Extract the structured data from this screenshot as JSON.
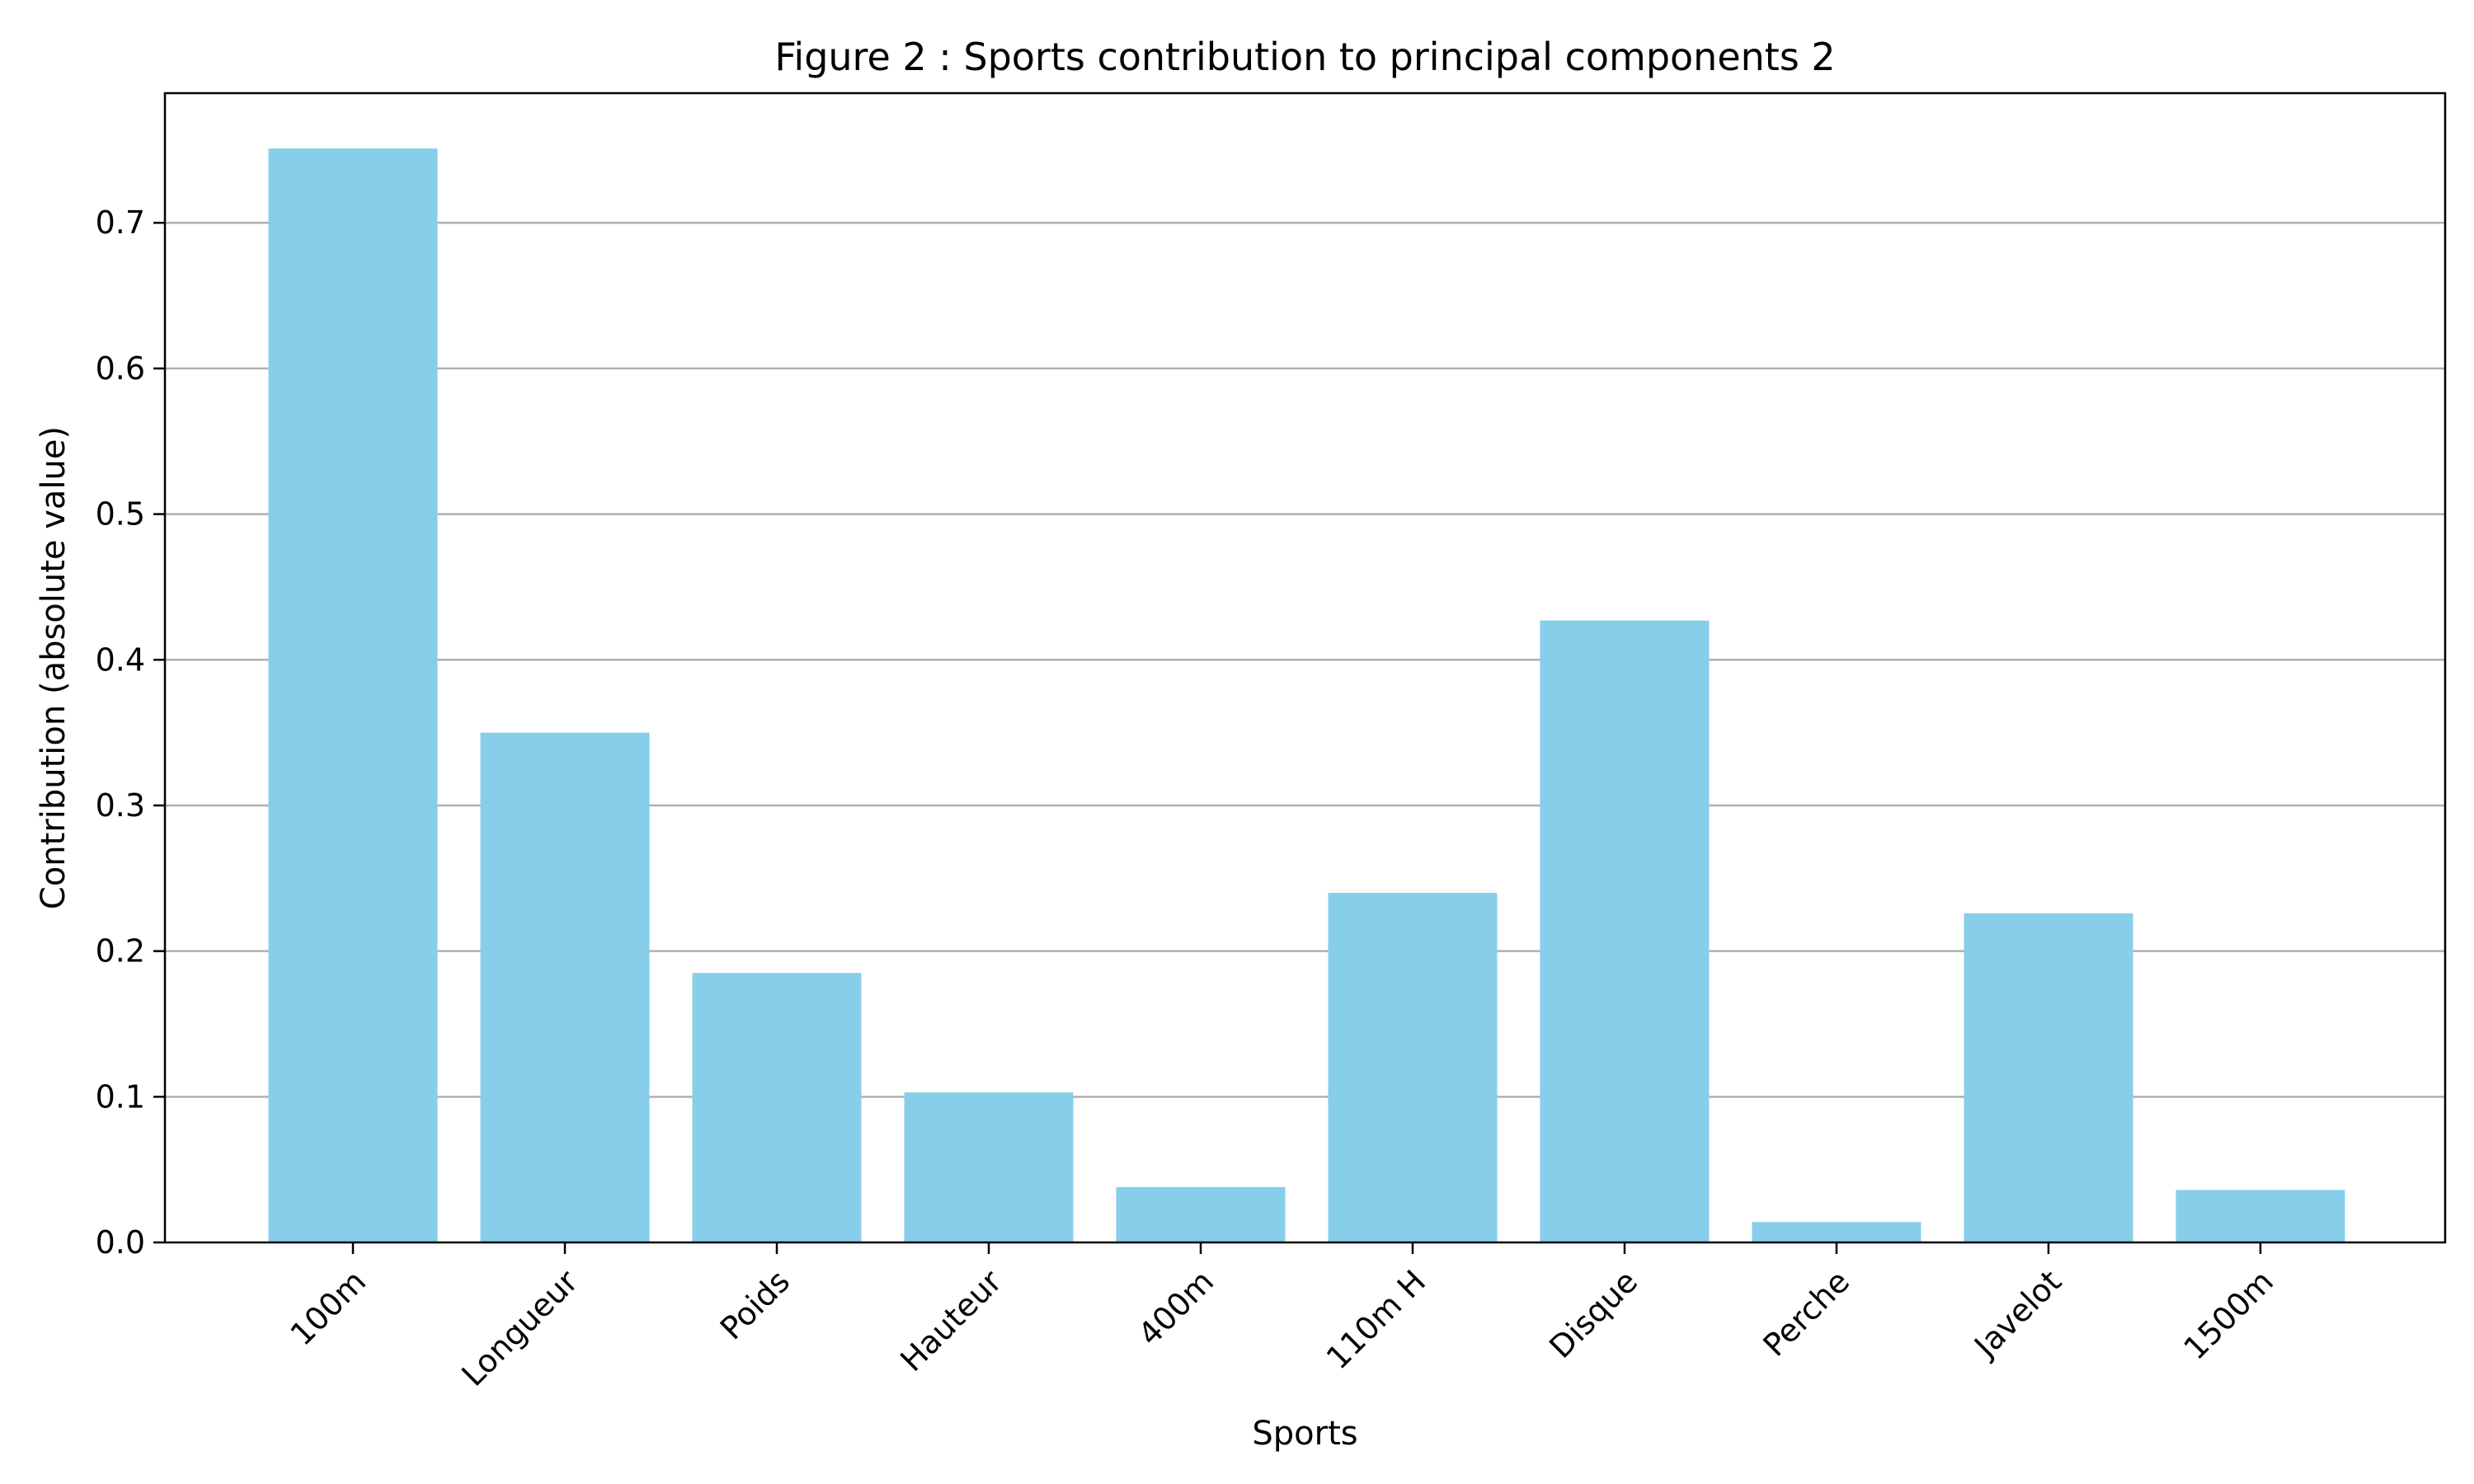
{
  "chart_data": {
    "type": "bar",
    "title": "Figure 2 : Sports contribution to principal components 2",
    "xlabel": "Sports",
    "ylabel": "Contribution (absolute value)",
    "categories": [
      "100m",
      "Longueur",
      "Poids",
      "Hauteur",
      "400m",
      "110m H",
      "Disque",
      "Perche",
      "Javelot",
      "1500m"
    ],
    "values": [
      0.751,
      0.35,
      0.185,
      0.103,
      0.038,
      0.24,
      0.427,
      0.014,
      0.226,
      0.036
    ],
    "yticks": [
      "0.0",
      "0.1",
      "0.2",
      "0.3",
      "0.4",
      "0.5",
      "0.6",
      "0.7"
    ],
    "ylim": [
      0,
      0.789
    ],
    "grid": "horizontal",
    "colors": {
      "bar": "#87ceeb",
      "grid": "#b0b0b0",
      "axis": "#000000"
    }
  }
}
